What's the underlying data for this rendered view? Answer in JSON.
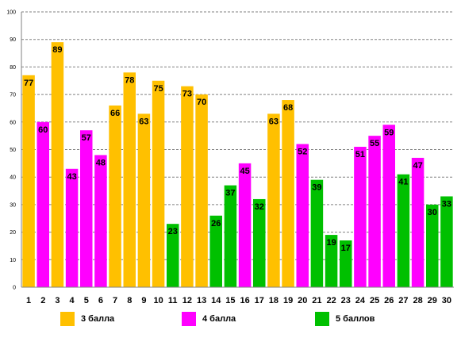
{
  "chart_data": {
    "type": "bar",
    "categories": [
      "1",
      "2",
      "3",
      "4",
      "5",
      "6",
      "7",
      "8",
      "9",
      "10",
      "11",
      "12",
      "13",
      "14",
      "15",
      "16",
      "17",
      "18",
      "19",
      "20",
      "21",
      "22",
      "23",
      "24",
      "25",
      "26",
      "27",
      "28",
      "29",
      "30"
    ],
    "values": [
      77,
      60,
      89,
      43,
      57,
      48,
      66,
      78,
      63,
      75,
      23,
      73,
      70,
      26,
      37,
      45,
      32,
      63,
      68,
      52,
      39,
      19,
      17,
      51,
      55,
      59,
      41,
      47,
      30,
      33
    ],
    "groups": [
      "3",
      "4",
      "3",
      "4",
      "4",
      "4",
      "3",
      "3",
      "3",
      "3",
      "5",
      "3",
      "3",
      "5",
      "5",
      "4",
      "5",
      "3",
      "3",
      "4",
      "5",
      "5",
      "5",
      "4",
      "4",
      "4",
      "5",
      "4",
      "5",
      "5"
    ],
    "ylim": [
      0,
      100
    ],
    "yticks": [
      0,
      10,
      20,
      30,
      40,
      50,
      60,
      70,
      80,
      90,
      100
    ],
    "grid": true,
    "legend_position": "bottom",
    "legend": [
      {
        "key": "3",
        "label": "3 балла",
        "color": "#FFC000"
      },
      {
        "key": "4",
        "label": "4 балла",
        "color": "#FF00FF"
      },
      {
        "key": "5",
        "label": "5 баллов",
        "color": "#00C000"
      }
    ]
  }
}
